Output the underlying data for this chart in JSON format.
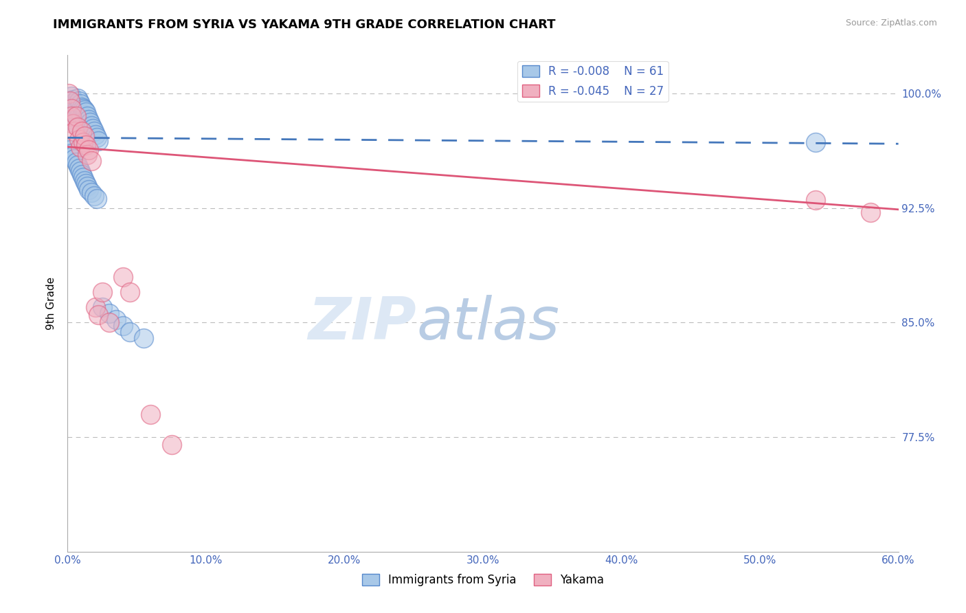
{
  "title": "IMMIGRANTS FROM SYRIA VS YAKAMA 9TH GRADE CORRELATION CHART",
  "source": "Source: ZipAtlas.com",
  "ylabel": "9th Grade",
  "xlim": [
    0.0,
    0.6
  ],
  "ylim": [
    0.7,
    1.025
  ],
  "xticks": [
    0.0,
    0.1,
    0.2,
    0.3,
    0.4,
    0.5,
    0.6
  ],
  "xticklabels": [
    "0.0%",
    "10.0%",
    "20.0%",
    "30.0%",
    "40.0%",
    "50.0%",
    "60.0%"
  ],
  "yticks": [
    0.775,
    0.85,
    0.925,
    1.0
  ],
  "yticklabels": [
    "77.5%",
    "85.0%",
    "92.5%",
    "100.0%"
  ],
  "blue_R": "-0.008",
  "blue_N": "61",
  "pink_R": "-0.045",
  "pink_N": "27",
  "blue_color": "#a8c8e8",
  "pink_color": "#f0b0c0",
  "blue_edge_color": "#5588cc",
  "pink_edge_color": "#e06080",
  "blue_line_color": "#4477bb",
  "pink_line_color": "#dd5577",
  "blue_trend_y": [
    0.971,
    0.967
  ],
  "pink_trend_y": [
    0.965,
    0.924
  ],
  "watermark_zip_color": "#dde8f5",
  "watermark_atlas_color": "#b8cce4",
  "tick_label_color": "#4466bb",
  "blue_scatter_x": [
    0.001,
    0.002,
    0.002,
    0.003,
    0.003,
    0.003,
    0.004,
    0.004,
    0.004,
    0.005,
    0.005,
    0.005,
    0.006,
    0.006,
    0.007,
    0.007,
    0.007,
    0.008,
    0.008,
    0.009,
    0.009,
    0.01,
    0.01,
    0.011,
    0.012,
    0.012,
    0.013,
    0.014,
    0.015,
    0.016,
    0.017,
    0.018,
    0.019,
    0.02,
    0.021,
    0.022,
    0.001,
    0.002,
    0.003,
    0.004,
    0.005,
    0.006,
    0.007,
    0.008,
    0.009,
    0.01,
    0.011,
    0.012,
    0.013,
    0.014,
    0.015,
    0.017,
    0.019,
    0.021,
    0.025,
    0.03,
    0.035,
    0.04,
    0.045,
    0.055,
    0.54
  ],
  "blue_scatter_y": [
    0.995,
    0.99,
    0.985,
    0.998,
    0.992,
    0.988,
    0.996,
    0.989,
    0.983,
    0.994,
    0.987,
    0.981,
    0.993,
    0.986,
    0.997,
    0.991,
    0.984,
    0.995,
    0.988,
    0.993,
    0.987,
    0.991,
    0.985,
    0.99,
    0.989,
    0.983,
    0.988,
    0.985,
    0.983,
    0.981,
    0.979,
    0.977,
    0.975,
    0.973,
    0.971,
    0.969,
    0.965,
    0.963,
    0.961,
    0.959,
    0.957,
    0.955,
    0.953,
    0.951,
    0.949,
    0.947,
    0.945,
    0.943,
    0.941,
    0.939,
    0.937,
    0.935,
    0.933,
    0.931,
    0.86,
    0.856,
    0.852,
    0.848,
    0.844,
    0.84,
    0.968
  ],
  "pink_scatter_x": [
    0.001,
    0.002,
    0.003,
    0.003,
    0.004,
    0.005,
    0.006,
    0.007,
    0.008,
    0.009,
    0.01,
    0.011,
    0.012,
    0.013,
    0.014,
    0.015,
    0.017,
    0.02,
    0.022,
    0.025,
    0.03,
    0.04,
    0.045,
    0.06,
    0.075,
    0.54,
    0.58
  ],
  "pink_scatter_y": [
    1.0,
    0.995,
    0.99,
    0.985,
    0.98,
    0.975,
    0.985,
    0.978,
    0.97,
    0.965,
    0.975,
    0.968,
    0.972,
    0.966,
    0.96,
    0.963,
    0.956,
    0.86,
    0.855,
    0.87,
    0.85,
    0.88,
    0.87,
    0.79,
    0.77,
    0.93,
    0.922
  ]
}
